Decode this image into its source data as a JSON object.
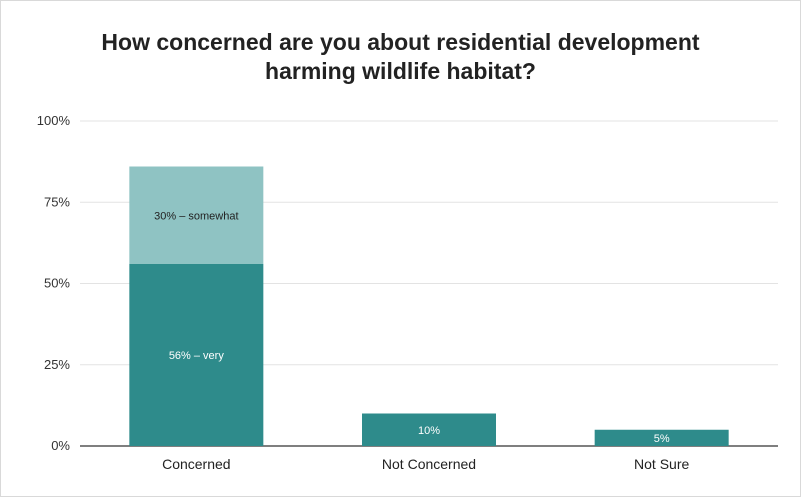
{
  "chart_data": {
    "type": "bar",
    "stacked": true,
    "title": [
      "How concerned are you about residential development",
      "harming wildlife habitat?"
    ],
    "categories": [
      "Concerned",
      "Not Concerned",
      "Not Sure"
    ],
    "y_ticks": [
      "0%",
      "25%",
      "50%",
      "75%",
      "100%"
    ],
    "ylim": [
      0,
      100
    ],
    "grid": true,
    "series": [
      {
        "values": [
          56,
          10,
          5
        ],
        "labels": [
          "56% – very",
          "10%",
          "5%"
        ],
        "color": "#2e8b8b",
        "label_color": "#ffffff"
      },
      {
        "values": [
          30,
          0,
          0
        ],
        "labels": [
          "30% – somewhat",
          "",
          ""
        ],
        "color": "#8fc3c3",
        "label_color": "#222222"
      }
    ]
  }
}
